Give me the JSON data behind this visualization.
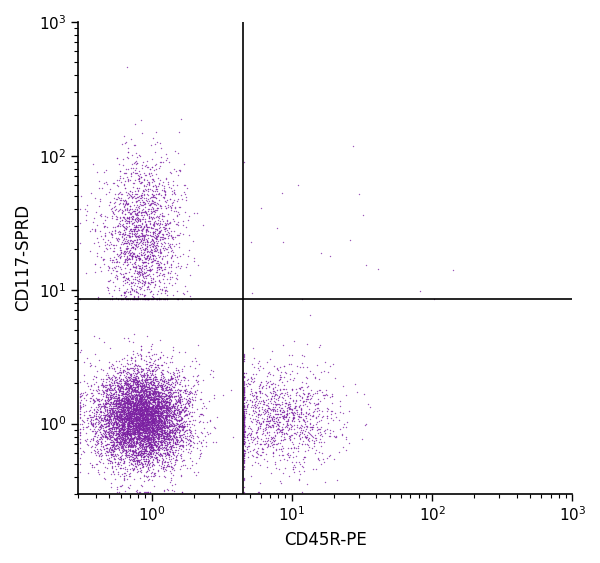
{
  "xlabel": "CD45R-PE",
  "ylabel": "CD117-SPRD",
  "dot_color": "#7B1FA2",
  "dot_alpha": 0.75,
  "dot_size": 1.0,
  "xlim": [
    0.3,
    1000
  ],
  "ylim": [
    0.3,
    1000
  ],
  "gate_x": 4.5,
  "gate_y": 8.5,
  "n_population1": 7000,
  "n_population2": 1800,
  "n_population3": 1200,
  "n_scattered": 20,
  "background_color": "#ffffff",
  "seed": 42
}
